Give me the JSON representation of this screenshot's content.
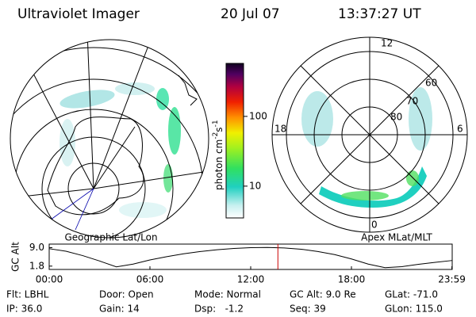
{
  "header": {
    "title": "Ultraviolet Imager",
    "date": "20 Jul 07",
    "time": "13:37:27 UT"
  },
  "left_map": {
    "label": "Geographic Lat/Lon"
  },
  "right_map": {
    "label": "Apex MLat/MLT",
    "mlt_labels": [
      "12",
      "6",
      "0",
      "18"
    ],
    "lat_labels": [
      "60",
      "70",
      "80"
    ]
  },
  "colorbar": {
    "label": {
      "unit": "photon cm",
      "exp1": "-2",
      "s": "s",
      "exp2": "-1"
    },
    "clim": [
      3.5,
      575
    ],
    "log": true,
    "ticks": [
      100,
      10
    ]
  },
  "altitude_plot": {
    "ylabel": "GC Alt",
    "ylim": [
      0.5,
      10.4
    ],
    "yticks": [
      {
        "value": 9,
        "label": "9.0"
      },
      {
        "value": 1.8,
        "label": "1.8"
      }
    ],
    "xlim": [
      0,
      24
    ],
    "xticks": [
      {
        "value": 0,
        "label": "00:00"
      },
      {
        "value": 6,
        "label": "06:00"
      },
      {
        "value": 12,
        "label": "12:00"
      },
      {
        "value": 18,
        "label": "18:00"
      },
      {
        "value": 23.98,
        "label": "23:59"
      }
    ],
    "x": [
      0,
      1,
      2,
      3,
      4,
      5,
      6,
      7,
      8,
      9,
      10,
      11,
      12,
      13,
      14,
      15,
      16,
      17,
      18,
      19,
      20,
      21,
      22,
      23,
      24
    ],
    "values": [
      8.6,
      7.6,
      5.9,
      3.8,
      1.5,
      2.6,
      4.2,
      5.5,
      6.6,
      7.5,
      8.2,
      8.7,
      9.0,
      9.1,
      8.9,
      8.4,
      7.5,
      6.3,
      4.6,
      2.6,
      1.2,
      1.6,
      2.5,
      3.3,
      4.0
    ],
    "marker_x": 13.62
  },
  "footer": {
    "rows": [
      [
        "Flt: LBHL",
        "Door: Open",
        "Mode: Normal",
        "GC Alt: 9.0 Re",
        "GLat: -71.0"
      ],
      [
        "IP: 36.0",
        "Gain: 14",
        "Dsp:   -1.2",
        "Seq: 39",
        "GLon: 115.0"
      ]
    ]
  }
}
